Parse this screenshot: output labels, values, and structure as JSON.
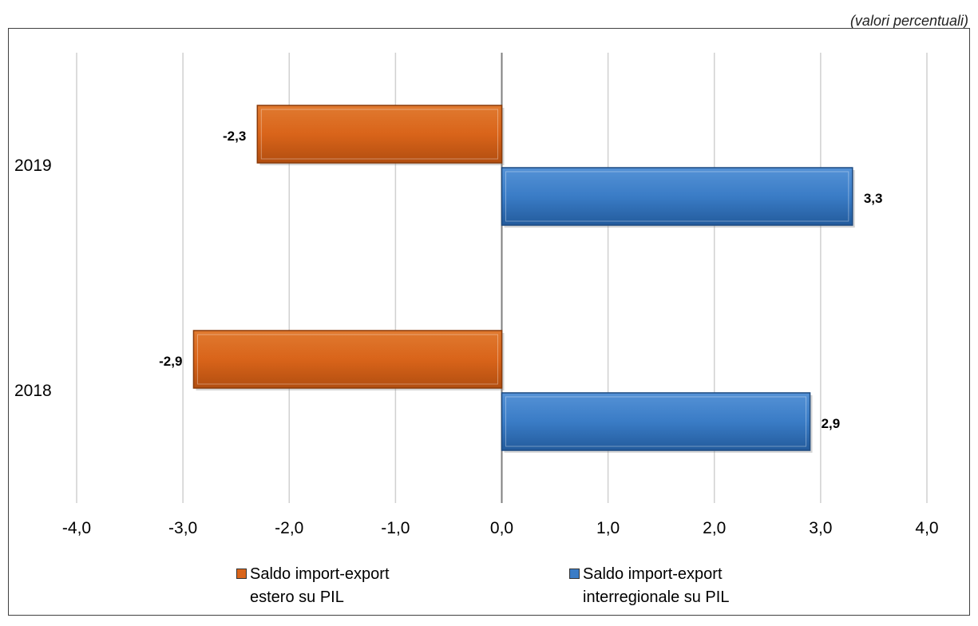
{
  "unit_note": "(valori percentuali)",
  "colors": {
    "estero": "#d9641a",
    "interregionale": "#3a7cc6",
    "grid": "#d0d0d0",
    "axis": "#7f7f7f"
  },
  "chart_data": {
    "type": "bar",
    "orientation": "horizontal",
    "categories": [
      "2019",
      "2018"
    ],
    "series": [
      {
        "name": "Saldo import-export\nestero su PIL",
        "values": [
          -2.3,
          -2.9
        ],
        "labels": [
          "-2,3",
          "-2,9"
        ]
      },
      {
        "name": "Saldo import-export\ninterregionale su PIL",
        "values": [
          3.3,
          2.9
        ],
        "labels": [
          "3,3",
          "2,9"
        ]
      }
    ],
    "xlim": [
      -4,
      4
    ],
    "xticks": [
      "-4,0",
      "-3,0",
      "-2,0",
      "-1,0",
      "0,0",
      "1,0",
      "2,0",
      "3,0",
      "4,0"
    ],
    "grid": true,
    "legend_position": "bottom"
  }
}
